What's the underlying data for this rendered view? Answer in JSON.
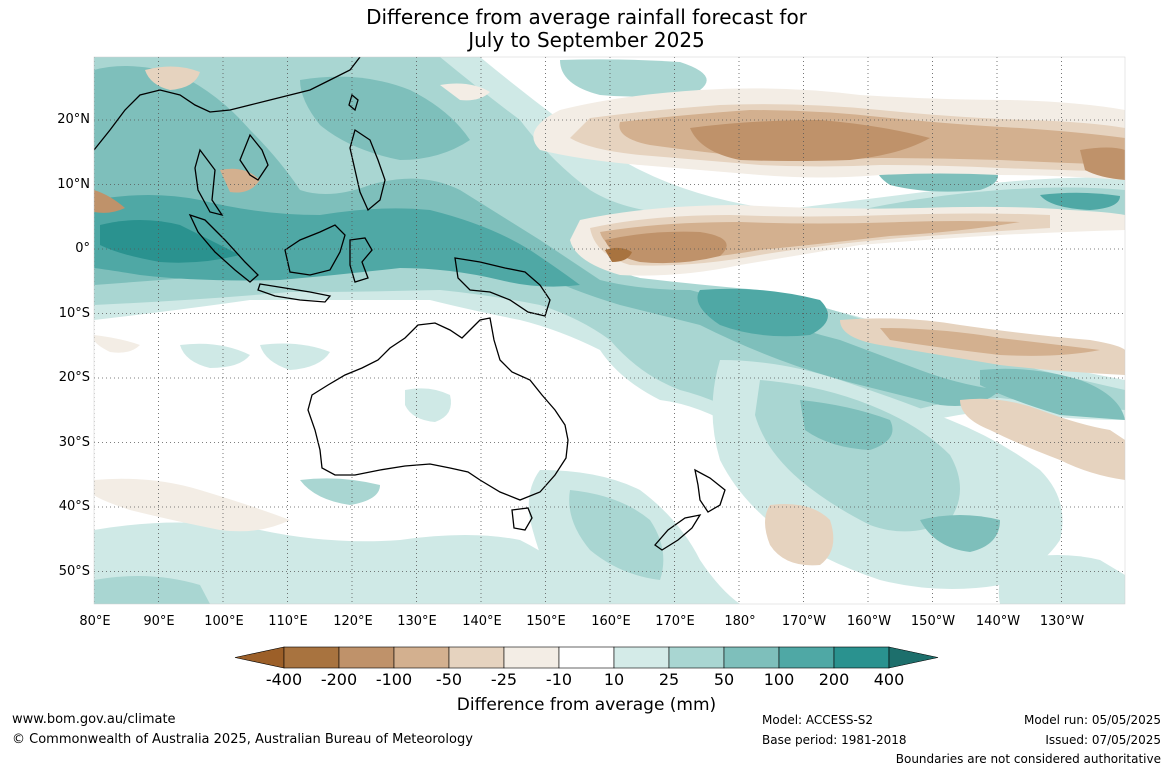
{
  "title": {
    "line1": "Difference from average rainfall forecast for",
    "line2": "July to September 2025"
  },
  "map": {
    "lat_labels": [
      "20°N",
      "10°N",
      "0°",
      "10°S",
      "20°S",
      "30°S",
      "40°S",
      "50°S"
    ],
    "lon_labels": [
      "80°E",
      "90°E",
      "100°E",
      "110°E",
      "120°E",
      "130°E",
      "140°E",
      "150°E",
      "160°E",
      "170°E",
      "180°",
      "170°W",
      "160°W",
      "150°W",
      "140°W",
      "130°W"
    ]
  },
  "legend": {
    "ticks": [
      "-400",
      "-200",
      "-100",
      "-50",
      "-25",
      "-10",
      "10",
      "25",
      "50",
      "100",
      "200",
      "400"
    ],
    "colors": [
      "#9c5f28",
      "#a8733f",
      "#bf926a",
      "#d3b08f",
      "#e6d3bf",
      "#f3ede5",
      "#ffffff",
      "#d4ebe8",
      "#a9d6d2",
      "#7ebfbb",
      "#4fa8a5",
      "#2a928f",
      "#1d6f6c"
    ],
    "label": "Difference from average (mm)"
  },
  "footer": {
    "url": "www.bom.gov.au/climate",
    "copyright": "© Commonwealth of Australia 2025, Australian Bureau of Meteorology",
    "model": "Model: ACCESS-S2",
    "base_period": "Base period: 1981-2018",
    "model_run": "Model run: 05/05/2025",
    "issued": "Issued: 07/05/2025",
    "disclaimer": "Boundaries are not considered authoritative"
  }
}
